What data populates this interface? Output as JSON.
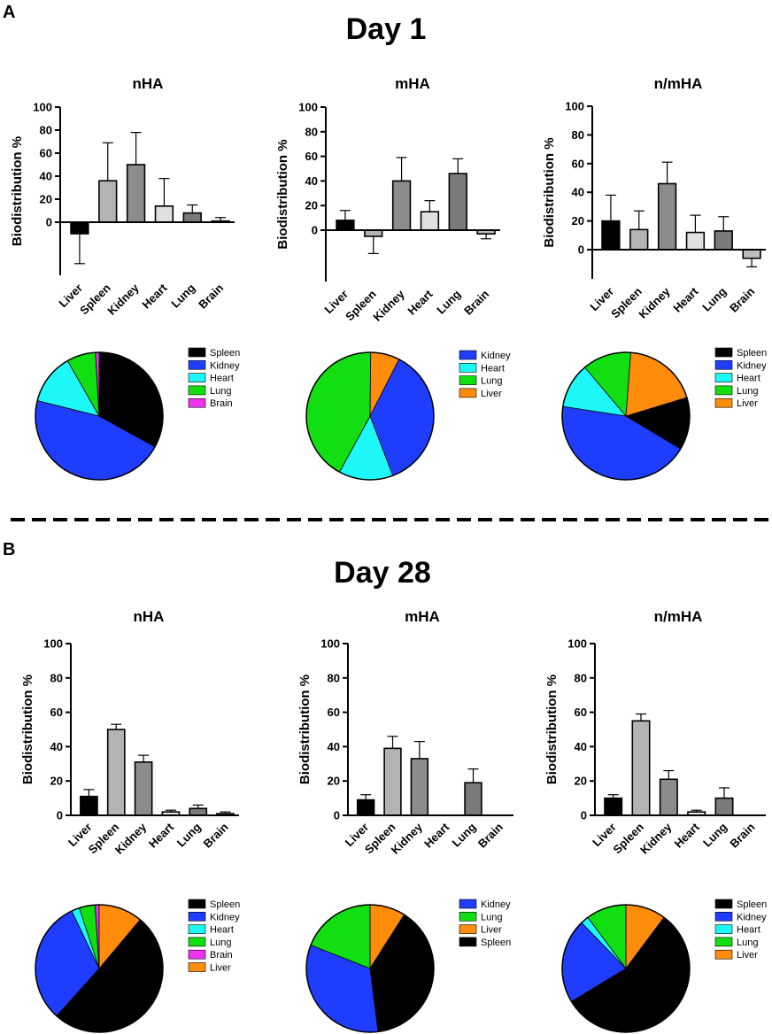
{
  "panels": [
    {
      "letter": "A",
      "title": "Day 1"
    },
    {
      "letter": "B",
      "title": "Day 28"
    }
  ],
  "chart_data": [
    {
      "type": "bar",
      "panel": "A",
      "title": "nHA",
      "ylabel": "Biodistribution %",
      "ylim": [
        -40,
        100
      ],
      "yticks": [
        0,
        20,
        40,
        60,
        80,
        100
      ],
      "categories": [
        "Liver",
        "Spleen",
        "Kidney",
        "Heart",
        "Lung",
        "Brain"
      ],
      "values": [
        -10,
        36,
        50,
        14,
        8,
        1
      ],
      "errors": [
        26,
        33,
        28,
        24,
        7,
        3
      ],
      "colors": [
        "#000000",
        "#b3b3b3",
        "#8c8c8c",
        "#e0e0e0",
        "#7a7a7a",
        "#bdbdbd"
      ]
    },
    {
      "type": "bar",
      "panel": "A",
      "title": "mHA",
      "ylabel": "Biodistribution %",
      "ylim": [
        -40,
        100
      ],
      "yticks": [
        0,
        20,
        40,
        60,
        80,
        100
      ],
      "categories": [
        "Liver",
        "Spleen",
        "Kidney",
        "Heart",
        "Lung",
        "Brain"
      ],
      "values": [
        8,
        -5,
        40,
        15,
        46,
        -3
      ],
      "errors": [
        8,
        14,
        19,
        9,
        12,
        4
      ],
      "colors": [
        "#000000",
        "#b3b3b3",
        "#8c8c8c",
        "#e0e0e0",
        "#7a7a7a",
        "#bdbdbd"
      ]
    },
    {
      "type": "bar",
      "panel": "A",
      "title": "n/mHA",
      "ylabel": "Biodistribution %",
      "ylim": [
        -20,
        100
      ],
      "yticks": [
        0,
        20,
        40,
        60,
        80,
        100
      ],
      "categories": [
        "Liver",
        "Spleen",
        "Kidney",
        "Heart",
        "Lung",
        "Brain"
      ],
      "values": [
        20,
        14,
        46,
        12,
        13,
        -6
      ],
      "errors": [
        18,
        13,
        15,
        12,
        10,
        6
      ],
      "colors": [
        "#000000",
        "#b3b3b3",
        "#8c8c8c",
        "#e0e0e0",
        "#7a7a7a",
        "#bdbdbd"
      ]
    },
    {
      "type": "pie",
      "panel": "A",
      "chart": "nHA",
      "labels": [
        "Spleen",
        "Kidney",
        "Heart",
        "Lung",
        "Brain"
      ],
      "values": [
        36,
        50,
        14,
        8,
        1
      ],
      "colors": [
        "#000000",
        "#1f3dff",
        "#1ef7f7",
        "#11df11",
        "#ee33ee"
      ],
      "start_angle": 0,
      "order": [
        "Spleen",
        "Kidney",
        "Heart",
        "Lung",
        "Brain"
      ]
    },
    {
      "type": "pie",
      "panel": "A",
      "chart": "mHA",
      "labels": [
        "Kidney",
        "Heart",
        "Lung",
        "Liver"
      ],
      "values": [
        40,
        15,
        46,
        8
      ],
      "colors": [
        "#1f3dff",
        "#1ef7f7",
        "#11df11",
        "#ff8c0a"
      ],
      "start_angle": 27,
      "order": [
        "Kidney",
        "Heart",
        "Lung",
        "Liver"
      ]
    },
    {
      "type": "pie",
      "panel": "A",
      "chart": "n/mHA",
      "labels": [
        "Spleen",
        "Kidney",
        "Heart",
        "Lung",
        "Liver"
      ],
      "values": [
        14,
        46,
        12,
        13,
        20
      ],
      "colors": [
        "#000000",
        "#1f3dff",
        "#1ef7f7",
        "#11df11",
        "#ff8c0a"
      ],
      "start_angle": 73,
      "order": [
        "Spleen",
        "Kidney",
        "Heart",
        "Lung",
        "Liver"
      ]
    },
    {
      "type": "bar",
      "panel": "B",
      "title": "nHA",
      "ylabel": "Biodistribution %",
      "ylim": [
        0,
        100
      ],
      "yticks": [
        0,
        20,
        40,
        60,
        80,
        100
      ],
      "categories": [
        "Liver",
        "Spleen",
        "Kidney",
        "Heart",
        "Lung",
        "Brain"
      ],
      "values": [
        11,
        50,
        31,
        2,
        4,
        1
      ],
      "errors": [
        4,
        3,
        4,
        1,
        2,
        1
      ],
      "colors": [
        "#000000",
        "#b3b3b3",
        "#8c8c8c",
        "#e0e0e0",
        "#7a7a7a",
        "#bdbdbd"
      ]
    },
    {
      "type": "bar",
      "panel": "B",
      "title": "mHA",
      "ylabel": "Biodistribution %",
      "ylim": [
        0,
        100
      ],
      "yticks": [
        0,
        20,
        40,
        60,
        80,
        100
      ],
      "categories": [
        "Liver",
        "Spleen",
        "Kidney",
        "Heart",
        "Lung",
        "Brain"
      ],
      "values": [
        9,
        39,
        33,
        0,
        19,
        0
      ],
      "errors": [
        3,
        7,
        10,
        0,
        8,
        0
      ],
      "colors": [
        "#000000",
        "#b3b3b3",
        "#8c8c8c",
        "#e0e0e0",
        "#7a7a7a",
        "#bdbdbd"
      ]
    },
    {
      "type": "bar",
      "panel": "B",
      "title": "n/mHA",
      "ylabel": "Biodistribution %",
      "ylim": [
        0,
        100
      ],
      "yticks": [
        0,
        20,
        40,
        60,
        80,
        100
      ],
      "categories": [
        "Liver",
        "Spleen",
        "Kidney",
        "Heart",
        "Lung",
        "Brain"
      ],
      "values": [
        10,
        55,
        21,
        2,
        10,
        0
      ],
      "errors": [
        2,
        4,
        5,
        1,
        6,
        0
      ],
      "colors": [
        "#000000",
        "#b3b3b3",
        "#8c8c8c",
        "#e0e0e0",
        "#7a7a7a",
        "#bdbdbd"
      ]
    },
    {
      "type": "pie",
      "panel": "B",
      "chart": "nHA",
      "labels": [
        "Spleen",
        "Kidney",
        "Heart",
        "Lung",
        "Brain",
        "Liver"
      ],
      "values": [
        50,
        31,
        2,
        4,
        1,
        11
      ],
      "colors": [
        "#000000",
        "#1f3dff",
        "#1ef7f7",
        "#11df11",
        "#ee33ee",
        "#ff8c0a"
      ],
      "start_angle": 40,
      "order": [
        "Spleen",
        "Kidney",
        "Heart",
        "Lung",
        "Brain",
        "Liver"
      ]
    },
    {
      "type": "pie",
      "panel": "B",
      "chart": "mHA",
      "labels": [
        "Kidney",
        "Lung",
        "Liver",
        "Spleen"
      ],
      "values": [
        33,
        19,
        9,
        39
      ],
      "colors": [
        "#1f3dff",
        "#11df11",
        "#ff8c0a",
        "#000000"
      ],
      "start_angle": 0,
      "order": [
        "Liver",
        "Spleen",
        "Kidney",
        "Lung"
      ]
    },
    {
      "type": "pie",
      "panel": "B",
      "chart": "n/mHA",
      "labels": [
        "Spleen",
        "Kidney",
        "Heart",
        "Lung",
        "Liver"
      ],
      "values": [
        55,
        21,
        2,
        10,
        10
      ],
      "colors": [
        "#000000",
        "#1f3dff",
        "#1ef7f7",
        "#11df11",
        "#ff8c0a"
      ],
      "start_angle": 0,
      "order": [
        "Liver",
        "Spleen",
        "Kidney",
        "Heart",
        "Lung"
      ]
    }
  ]
}
